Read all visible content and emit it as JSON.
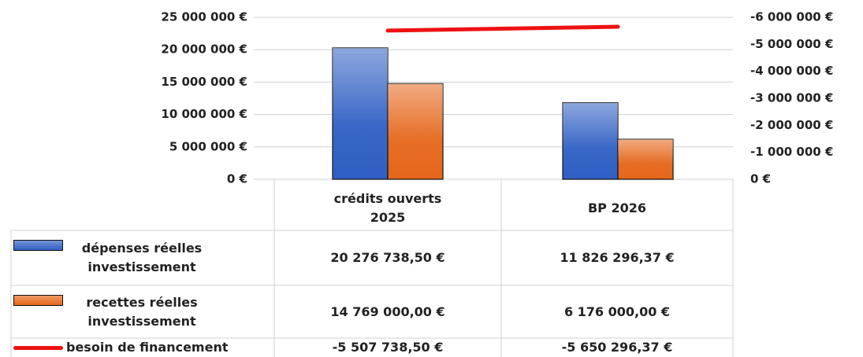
{
  "chart_data": {
    "type": "bar",
    "categories": [
      "crédits ouverts 2025",
      "BP 2026"
    ],
    "series": [
      {
        "name": "dépenses réelles investissement",
        "color": "#2f5fc4",
        "values": [
          20276738.5,
          11826296.37
        ],
        "value_labels": [
          "20 276 738,50 €",
          "11 826 296,37 €"
        ]
      },
      {
        "name": "recettes réelles investissement",
        "color": "#e5661a",
        "values": [
          14769000.0,
          6176000.0
        ],
        "value_labels": [
          "14 769 000,00 €",
          "6 176 000,00 €"
        ]
      },
      {
        "name": "besoin de financement",
        "type": "line",
        "axis": "y2",
        "color": "#ee1111",
        "values": [
          -5507738.5,
          -5650296.37
        ],
        "value_labels": [
          "-5 507 738,50 €",
          "-5 650 296,37 €"
        ]
      }
    ],
    "ylim": [
      0,
      25000000
    ],
    "yticks": [
      {
        "value": 0,
        "label": "0 €"
      },
      {
        "value": 5000000,
        "label": "5 000 000 €"
      },
      {
        "value": 10000000,
        "label": "10 000 000 €"
      },
      {
        "value": 15000000,
        "label": "15 000 000 €"
      },
      {
        "value": 20000000,
        "label": "20 000 000 €"
      },
      {
        "value": 25000000,
        "label": "25 000 000 €"
      }
    ],
    "y2lim": [
      0,
      -6000000
    ],
    "y2ticks": [
      {
        "value": 0,
        "label": "0 €"
      },
      {
        "value": -1000000,
        "label": "-1 000 000 €"
      },
      {
        "value": -2000000,
        "label": "-2 000 000 €"
      },
      {
        "value": -3000000,
        "label": "-3 000 000 €"
      },
      {
        "value": -4000000,
        "label": "-4 000 000 €"
      },
      {
        "value": -5000000,
        "label": "-5 000 000 €"
      },
      {
        "value": -6000000,
        "label": "-6 000 000 €"
      }
    ],
    "grid": true
  }
}
